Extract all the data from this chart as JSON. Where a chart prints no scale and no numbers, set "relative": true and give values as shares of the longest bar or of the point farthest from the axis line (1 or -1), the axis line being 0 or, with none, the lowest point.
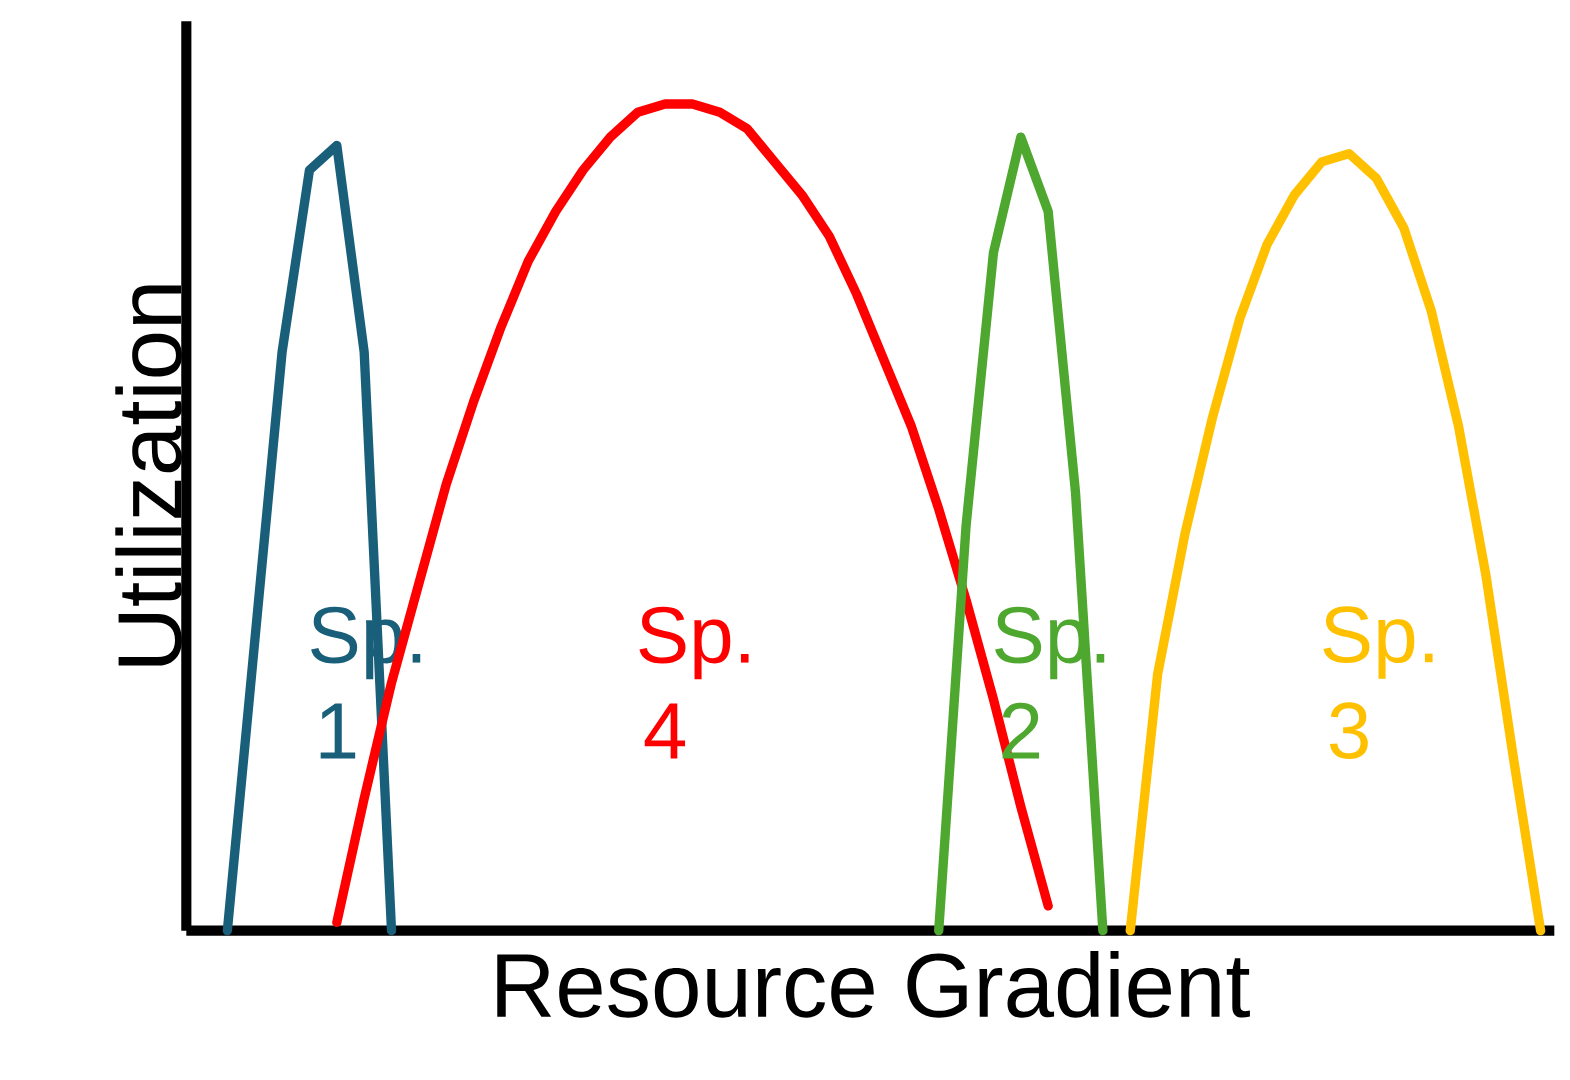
{
  "chart_data": {
    "type": "line",
    "relative": true,
    "xlabel": "Resource Gradient",
    "ylabel": "Utilization",
    "categories": [
      null,
      null,
      null,
      null,
      null,
      null,
      null,
      null,
      null,
      null,
      null,
      null,
      null,
      null,
      null,
      null,
      null,
      null,
      null,
      null,
      null,
      null,
      null,
      null,
      null,
      null,
      null,
      null,
      null,
      null,
      null,
      null,
      null,
      null,
      null,
      null,
      null,
      null,
      null,
      null,
      null,
      null,
      null,
      null,
      null,
      null,
      null,
      null,
      null,
      null
    ],
    "series": [
      {
        "name": "Sp. 1",
        "color": "#1a5f7a",
        "values": [
          null,
          0,
          0.35,
          0.7,
          0.92,
          0.95,
          0.7,
          0,
          null,
          null,
          null,
          null,
          null,
          null,
          null,
          null,
          null,
          null,
          null,
          null,
          null,
          null,
          null,
          null,
          null,
          null,
          null,
          null,
          null,
          null,
          null,
          null,
          null,
          null,
          null,
          null,
          null,
          null,
          null,
          null,
          null,
          null,
          null,
          null,
          null,
          null,
          null,
          null,
          null,
          null
        ]
      },
      {
        "name": "Sp. 4",
        "color": "#ff0000",
        "values": [
          null,
          null,
          null,
          null,
          null,
          0.01,
          0.16,
          0.3,
          0.42,
          0.54,
          0.64,
          0.73,
          0.81,
          0.87,
          0.92,
          0.96,
          0.99,
          1.0,
          1.0,
          0.99,
          0.97,
          0.93,
          0.89,
          0.84,
          0.77,
          0.69,
          0.61,
          0.51,
          0.4,
          0.28,
          0.15,
          0.03,
          null,
          null,
          null,
          null,
          null,
          null,
          null,
          null,
          null,
          null,
          null,
          null,
          null,
          null,
          null,
          null,
          null,
          null
        ]
      },
      {
        "name": "Sp. 2",
        "color": "#4ea72e",
        "values": [
          null,
          null,
          null,
          null,
          null,
          null,
          null,
          null,
          null,
          null,
          null,
          null,
          null,
          null,
          null,
          null,
          null,
          null,
          null,
          null,
          null,
          null,
          null,
          null,
          null,
          null,
          null,
          0,
          0.49,
          0.82,
          0.96,
          0.87,
          0.53,
          0,
          null,
          null,
          null,
          null,
          null,
          null,
          null,
          null,
          null,
          null,
          null,
          null,
          null,
          null,
          null,
          null
        ]
      },
      {
        "name": "Sp. 3",
        "color": "#ffc000",
        "values": [
          null,
          null,
          null,
          null,
          null,
          null,
          null,
          null,
          null,
          null,
          null,
          null,
          null,
          null,
          null,
          null,
          null,
          null,
          null,
          null,
          null,
          null,
          null,
          null,
          null,
          null,
          null,
          null,
          null,
          null,
          null,
          null,
          null,
          null,
          0,
          0.31,
          0.48,
          0.62,
          0.74,
          0.83,
          0.89,
          0.93,
          0.94,
          0.91,
          0.85,
          0.75,
          0.61,
          0.43,
          0.21,
          0
        ]
      }
    ]
  }
}
